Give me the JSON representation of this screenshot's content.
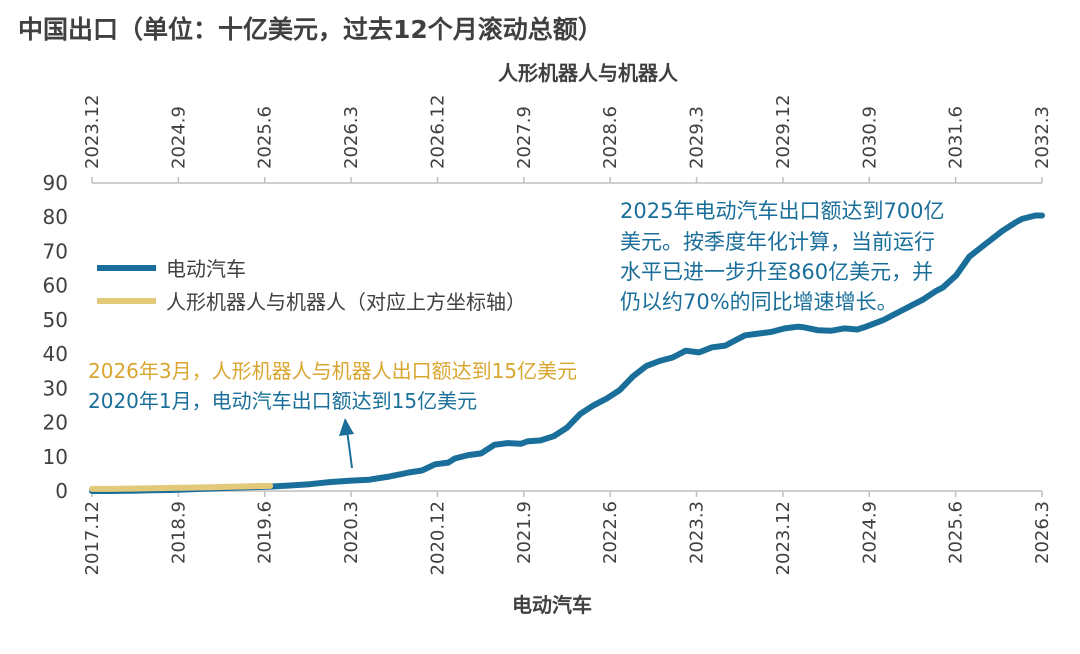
{
  "chart_data": {
    "type": "line",
    "title": "中国出口（单位：十亿美元，过去12个月滚动总额）",
    "top_xlabel": "人形机器人与机器人",
    "xlabel": "电动汽车",
    "ylim": [
      0,
      90
    ],
    "yticks": [
      "0",
      "10",
      "20",
      "30",
      "40",
      "50",
      "60",
      "70",
      "80",
      "90"
    ],
    "bottom_xticks": [
      "2017.12",
      "2018.9",
      "2019.6",
      "2020.3",
      "2020.12",
      "2021.9",
      "2022.6",
      "2023.3",
      "2023.12",
      "2024.9",
      "2025.6",
      "2026.3"
    ],
    "top_xticks": [
      "2023.12",
      "2024.9",
      "2025.6",
      "2026.3",
      "2026.12",
      "2027.9",
      "2028.6",
      "2029.3",
      "2029.12",
      "2030.9",
      "2031.6",
      "2032.3"
    ],
    "legend": [
      "电动汽车",
      "人形机器人与机器人（对应上方坐标轴）"
    ],
    "colors": {
      "ev": "#1a6f9a",
      "robot": "#e3c97a",
      "robot_note": "#d9a630",
      "ev_note": "#1a6f9a",
      "axis": "#bfbfbf",
      "text": "#404040"
    },
    "annotations": {
      "robot_note": "2026年3月，人形机器人与机器人出口额达到15亿美元",
      "ev_note": "2020年1月，电动汽车出口额达到15亿美元",
      "ev_callout": [
        "2025年电动汽车出口额达到700亿",
        "美元。按季度年化计算，当前运行",
        "水平已进一步升至860亿美元，并",
        "仍以约70%的同比增速增长。"
      ]
    },
    "series": [
      {
        "name": "电动汽车",
        "x": [
          0,
          3,
          6,
          9,
          12,
          15,
          18,
          21,
          24,
          27,
          30,
          33,
          36,
          39,
          42,
          45,
          47,
          48,
          50,
          52,
          54,
          55,
          57,
          59,
          61,
          63,
          65,
          66,
          68,
          70,
          72,
          74,
          76,
          78,
          80,
          82,
          84,
          86,
          88,
          90,
          92,
          94,
          96,
          98,
          99,
          101,
          103,
          105,
          107,
          108,
          110,
          112,
          114,
          116,
          117,
          120,
          123,
          124,
          126,
          128,
          129,
          131,
          133,
          135,
          137,
          138,
          140,
          141,
          143,
          144
        ],
        "y": [
          0.0,
          0.0,
          0.1,
          0.2,
          0.3,
          0.5,
          0.7,
          0.9,
          1.1,
          1.3,
          1.6,
          2.0,
          2.6,
          3.0,
          3.3,
          4.2,
          5.0,
          5.4,
          6.0,
          7.8,
          8.3,
          9.5,
          10.5,
          11.0,
          13.5,
          14.0,
          13.8,
          14.5,
          14.8,
          16.0,
          18.5,
          22.5,
          25.0,
          27.0,
          29.5,
          33.5,
          36.5,
          38.0,
          39.0,
          41.0,
          40.5,
          42.0,
          42.5,
          44.5,
          45.5,
          46.0,
          46.5,
          47.5,
          48.0,
          47.8,
          47.0,
          46.8,
          47.5,
          47.2,
          47.8,
          50.0,
          53.0,
          54.0,
          56.0,
          58.5,
          59.5,
          63.0,
          68.5,
          71.5,
          74.5,
          76.0,
          78.5,
          79.5,
          80.5,
          80.5
        ]
      },
      {
        "name": "人形机器人与机器人（对应上方坐标轴）",
        "x": [
          0,
          3,
          6,
          9,
          12,
          15,
          18,
          21,
          24,
          27
        ],
        "y": [
          0.6,
          0.6,
          0.7,
          0.8,
          0.9,
          1.0,
          1.1,
          1.25,
          1.4,
          1.5
        ]
      }
    ]
  }
}
